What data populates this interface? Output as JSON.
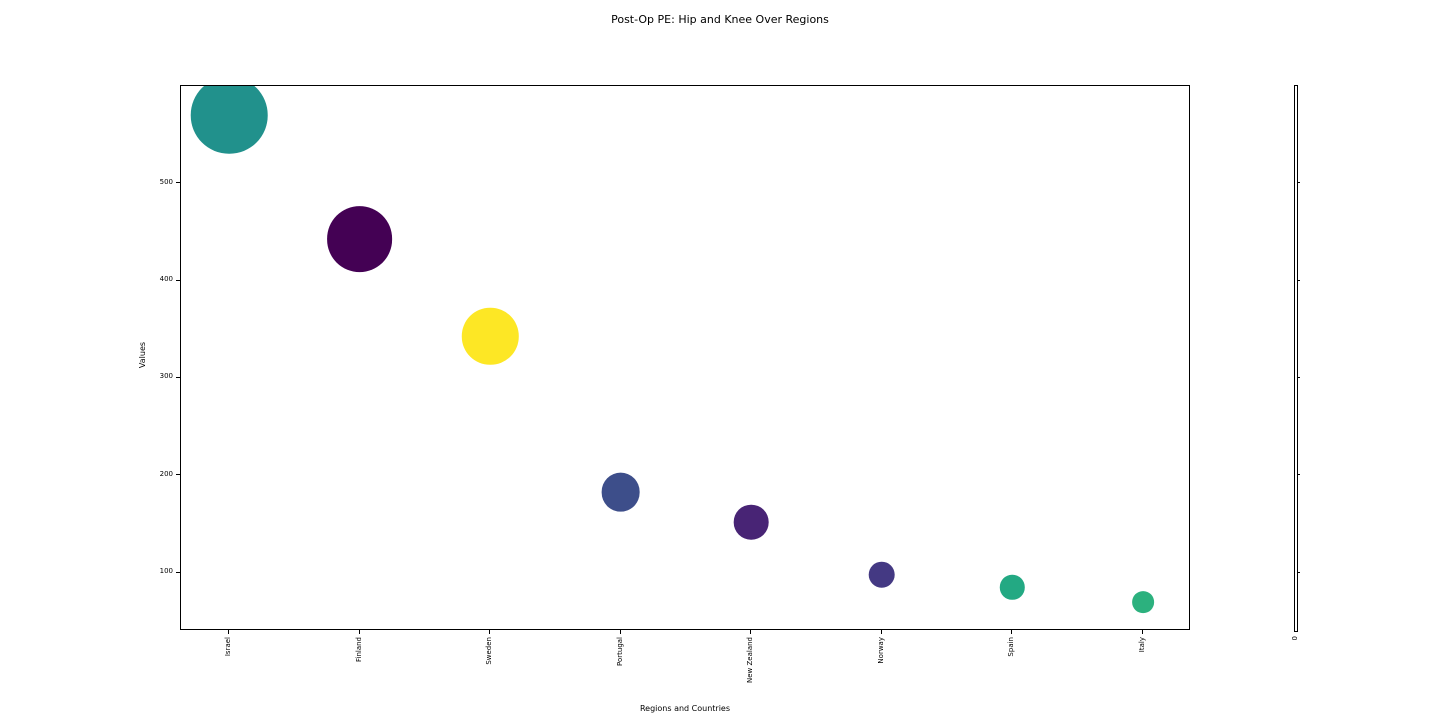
{
  "chart_data": {
    "type": "scatter",
    "title": "Post-Op PE: Hip and Knee Over Regions",
    "xlabel": "Regions and Countries",
    "ylabel": "Values",
    "categories": [
      "Israel",
      "Finland",
      "Sweden",
      "Portugal",
      "New Zealand",
      "Norway",
      "Spain",
      "Italy"
    ],
    "values": [
      570,
      443,
      343,
      183,
      152,
      98,
      85,
      70
    ],
    "colors": [
      "#21918c",
      "#440154",
      "#fde725",
      "#3d4e8a",
      "#482475",
      "#443983",
      "#23a983",
      "#2cb17e"
    ],
    "yticks": [
      100,
      200,
      300,
      400,
      500
    ],
    "ylim": [
      40,
      600
    ],
    "grid": false,
    "legend": "none",
    "marker": "bubble",
    "colorbar": {
      "zero_label": "0"
    }
  }
}
